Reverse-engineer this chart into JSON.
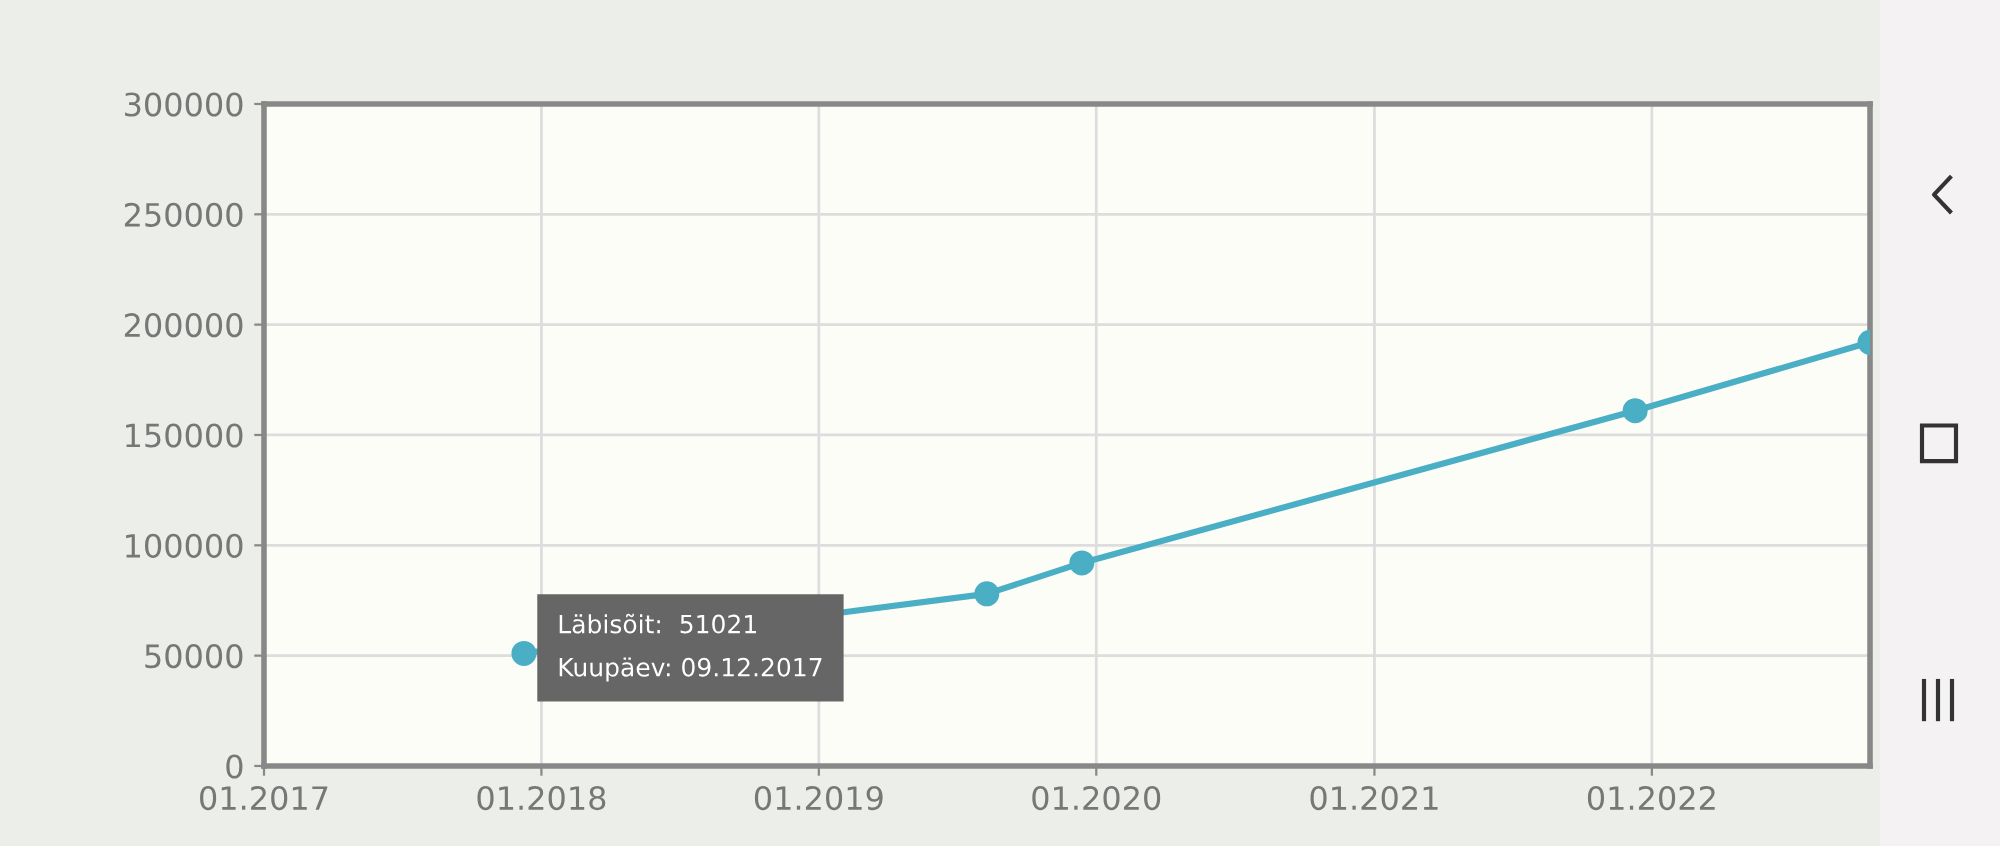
{
  "chart_data": {
    "type": "line",
    "x": [
      "2017-12-09",
      "2019-08-10",
      "2019-12-13",
      "2021-12-10",
      "2022-10-15"
    ],
    "series": [
      {
        "color": "#4aaec4",
        "values": [
          51021,
          78000,
          92000,
          161000,
          192000
        ]
      }
    ],
    "xlim": [
      "2017-01-01",
      "2022-10-15"
    ],
    "xticks": [
      {
        "value": "2017-01-01",
        "label": "01.2017"
      },
      {
        "value": "2018-01-01",
        "label": "01.2018"
      },
      {
        "value": "2019-01-01",
        "label": "01.2019"
      },
      {
        "value": "2020-01-01",
        "label": "01.2020"
      },
      {
        "value": "2021-01-01",
        "label": "01.2021"
      },
      {
        "value": "2022-01-01",
        "label": "01.2022"
      }
    ],
    "ylim": [
      0,
      300000
    ],
    "yticks": [
      0,
      50000,
      100000,
      150000,
      200000,
      250000,
      300000
    ],
    "grid": true,
    "marker": "circle",
    "line_style": "solid",
    "annotations": [
      {
        "text": "Läbisõit:  51021\nKuupäev: 09.12.2017",
        "x": "2017-12-09",
        "y": 51021
      }
    ]
  }
}
